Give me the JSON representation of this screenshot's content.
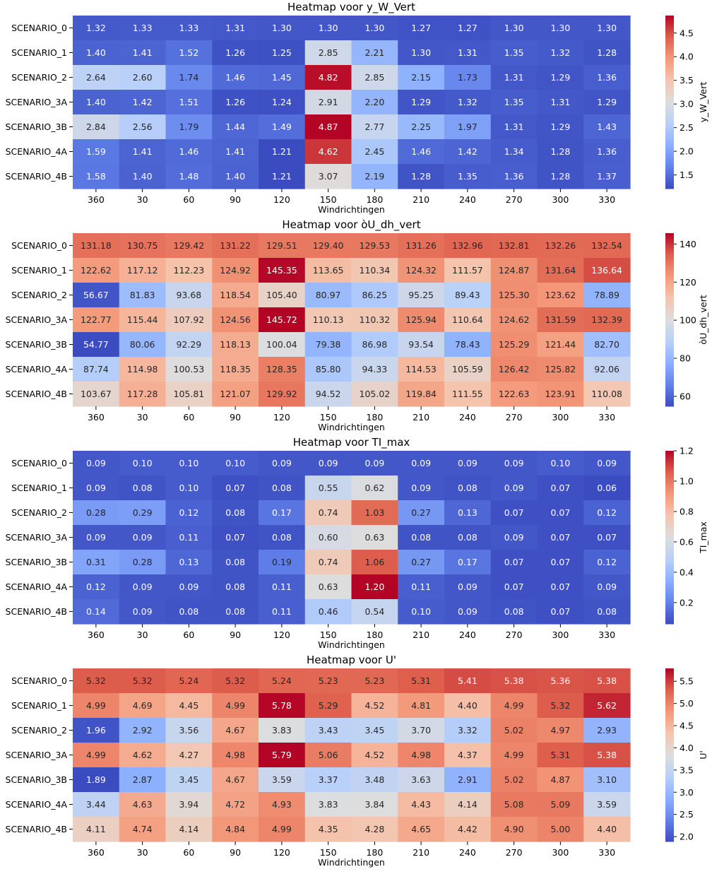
{
  "chart_data": [
    {
      "type": "heatmap",
      "title": "Heatmap voor y_W_Vert",
      "xlabel": "Windrichtingen",
      "ylabel": "",
      "colorbar_label": "y_W_Vert",
      "colormap": "coolwarm",
      "categories_x": [
        "360",
        "30",
        "60",
        "90",
        "120",
        "150",
        "180",
        "210",
        "240",
        "270",
        "300",
        "330"
      ],
      "categories_y": [
        "SCENARIO_0",
        "SCENARIO_1",
        "SCENARIO_2",
        "SCENARIO_3A",
        "SCENARIO_3B",
        "SCENARIO_4A",
        "SCENARIO_4B"
      ],
      "values": [
        [
          1.32,
          1.33,
          1.33,
          1.31,
          1.3,
          1.3,
          1.3,
          1.27,
          1.27,
          1.3,
          1.3,
          1.3
        ],
        [
          1.4,
          1.41,
          1.52,
          1.26,
          1.25,
          2.85,
          2.21,
          1.3,
          1.31,
          1.35,
          1.32,
          1.28
        ],
        [
          2.64,
          2.6,
          1.74,
          1.46,
          1.45,
          4.82,
          2.85,
          2.15,
          1.73,
          1.31,
          1.29,
          1.36
        ],
        [
          1.4,
          1.42,
          1.51,
          1.26,
          1.24,
          2.91,
          2.2,
          1.29,
          1.32,
          1.35,
          1.31,
          1.29
        ],
        [
          2.84,
          2.56,
          1.79,
          1.44,
          1.49,
          4.87,
          2.77,
          2.25,
          1.97,
          1.31,
          1.29,
          1.43
        ],
        [
          1.59,
          1.41,
          1.46,
          1.41,
          1.21,
          4.62,
          2.45,
          1.46,
          1.42,
          1.34,
          1.28,
          1.36
        ],
        [
          1.58,
          1.4,
          1.48,
          1.4,
          1.21,
          3.07,
          2.19,
          1.28,
          1.35,
          1.36,
          1.28,
          1.37
        ]
      ],
      "vmin": 1.21,
      "vmax": 4.87,
      "colorbar_ticks": [
        1.5,
        2.0,
        2.5,
        3.0,
        3.5,
        4.0,
        4.5
      ],
      "colorbar_tick_labels": [
        "1.5",
        "2.0",
        "2.5",
        "3.0",
        "3.5",
        "4.0",
        "4.5"
      ],
      "decimals": 2
    },
    {
      "type": "heatmap",
      "title": "Heatmap voor òU_dh_vert",
      "xlabel": "Windrichtingen",
      "ylabel": "",
      "colorbar_label": "òU_dh_vert",
      "colormap": "coolwarm",
      "categories_x": [
        "360",
        "30",
        "60",
        "90",
        "120",
        "150",
        "180",
        "210",
        "240",
        "270",
        "300",
        "330"
      ],
      "categories_y": [
        "SCENARIO_0",
        "SCENARIO_1",
        "SCENARIO_2",
        "SCENARIO_3A",
        "SCENARIO_3B",
        "SCENARIO_4A",
        "SCENARIO_4B"
      ],
      "values": [
        [
          131.18,
          130.75,
          129.42,
          131.22,
          129.51,
          129.4,
          129.53,
          131.26,
          132.96,
          132.81,
          132.26,
          132.54
        ],
        [
          122.62,
          117.12,
          112.23,
          124.92,
          145.35,
          113.65,
          110.34,
          124.32,
          111.57,
          124.87,
          131.64,
          136.64
        ],
        [
          56.67,
          81.83,
          93.68,
          118.54,
          105.4,
          80.97,
          86.25,
          95.25,
          89.43,
          125.3,
          123.62,
          78.89
        ],
        [
          122.77,
          115.44,
          107.92,
          124.56,
          145.72,
          110.13,
          110.32,
          125.94,
          110.64,
          124.62,
          131.59,
          132.39
        ],
        [
          54.77,
          80.06,
          92.29,
          118.13,
          100.04,
          79.38,
          86.98,
          93.54,
          78.43,
          125.29,
          121.44,
          82.7
        ],
        [
          87.74,
          114.98,
          100.53,
          118.35,
          128.35,
          85.8,
          94.33,
          114.53,
          105.59,
          126.42,
          125.82,
          92.06
        ],
        [
          103.67,
          117.28,
          105.81,
          121.07,
          129.92,
          94.52,
          105.02,
          119.84,
          111.55,
          122.63,
          123.91,
          110.08
        ]
      ],
      "vmin": 54.77,
      "vmax": 145.72,
      "colorbar_ticks": [
        60,
        80,
        100,
        120,
        140
      ],
      "colorbar_tick_labels": [
        "60",
        "80",
        "100",
        "120",
        "140"
      ],
      "decimals": 2
    },
    {
      "type": "heatmap",
      "title": "Heatmap voor TI_max",
      "xlabel": "Windrichtingen",
      "ylabel": "",
      "colorbar_label": "TI_max",
      "colormap": "coolwarm",
      "categories_x": [
        "360",
        "30",
        "60",
        "90",
        "120",
        "150",
        "180",
        "210",
        "240",
        "270",
        "300",
        "330"
      ],
      "categories_y": [
        "SCENARIO_0",
        "SCENARIO_1",
        "SCENARIO_2",
        "SCENARIO_3A",
        "SCENARIO_3B",
        "SCENARIO_4A",
        "SCENARIO_4B"
      ],
      "values": [
        [
          0.09,
          0.1,
          0.1,
          0.1,
          0.09,
          0.09,
          0.09,
          0.09,
          0.09,
          0.09,
          0.1,
          0.09
        ],
        [
          0.09,
          0.08,
          0.1,
          0.07,
          0.08,
          0.55,
          0.62,
          0.09,
          0.08,
          0.09,
          0.07,
          0.06
        ],
        [
          0.28,
          0.29,
          0.12,
          0.08,
          0.17,
          0.74,
          1.03,
          0.27,
          0.13,
          0.07,
          0.07,
          0.12
        ],
        [
          0.09,
          0.09,
          0.11,
          0.07,
          0.08,
          0.6,
          0.63,
          0.08,
          0.08,
          0.09,
          0.07,
          0.07
        ],
        [
          0.31,
          0.28,
          0.13,
          0.08,
          0.19,
          0.74,
          1.06,
          0.27,
          0.17,
          0.07,
          0.07,
          0.12
        ],
        [
          0.12,
          0.09,
          0.09,
          0.08,
          0.11,
          0.63,
          1.2,
          0.11,
          0.09,
          0.07,
          0.07,
          0.09
        ],
        [
          0.14,
          0.09,
          0.08,
          0.08,
          0.11,
          0.46,
          0.54,
          0.1,
          0.09,
          0.08,
          0.07,
          0.08
        ]
      ],
      "vmin": 0.06,
      "vmax": 1.2,
      "colorbar_ticks": [
        0.2,
        0.4,
        0.6,
        0.8,
        1.0,
        1.2
      ],
      "colorbar_tick_labels": [
        "0.2",
        "0.4",
        "0.6",
        "0.8",
        "1.0",
        "1.2"
      ],
      "decimals": 2
    },
    {
      "type": "heatmap",
      "title": "Heatmap voor U'",
      "xlabel": "Windrichtingen",
      "ylabel": "",
      "colorbar_label": "U'",
      "colormap": "coolwarm",
      "categories_x": [
        "360",
        "30",
        "60",
        "90",
        "120",
        "150",
        "180",
        "210",
        "240",
        "270",
        "300",
        "330"
      ],
      "categories_y": [
        "SCENARIO_0",
        "SCENARIO_1",
        "SCENARIO_2",
        "SCENARIO_3A",
        "SCENARIO_3B",
        "SCENARIO_4A",
        "SCENARIO_4B"
      ],
      "values": [
        [
          5.32,
          5.32,
          5.24,
          5.32,
          5.24,
          5.23,
          5.23,
          5.31,
          5.41,
          5.38,
          5.36,
          5.38
        ],
        [
          4.99,
          4.69,
          4.45,
          4.99,
          5.78,
          5.29,
          4.52,
          4.81,
          4.4,
          4.99,
          5.32,
          5.62
        ],
        [
          1.96,
          2.92,
          3.56,
          4.67,
          3.83,
          3.43,
          3.45,
          3.7,
          3.32,
          5.02,
          4.97,
          2.93
        ],
        [
          4.99,
          4.62,
          4.27,
          4.98,
          5.79,
          5.06,
          4.52,
          4.98,
          4.37,
          4.99,
          5.31,
          5.38
        ],
        [
          1.89,
          2.87,
          3.45,
          4.67,
          3.59,
          3.37,
          3.48,
          3.63,
          2.91,
          5.02,
          4.87,
          3.1
        ],
        [
          3.44,
          4.63,
          3.94,
          4.72,
          4.93,
          3.83,
          3.84,
          4.43,
          4.14,
          5.08,
          5.09,
          3.59
        ],
        [
          4.11,
          4.74,
          4.14,
          4.84,
          4.99,
          4.35,
          4.28,
          4.65,
          4.42,
          4.9,
          5.0,
          4.4
        ]
      ],
      "vmin": 1.89,
      "vmax": 5.79,
      "colorbar_ticks": [
        2.0,
        2.5,
        3.0,
        3.5,
        4.0,
        4.5,
        5.0,
        5.5
      ],
      "colorbar_tick_labels": [
        "2.0",
        "2.5",
        "3.0",
        "3.5",
        "4.0",
        "4.5",
        "5.0",
        "5.5"
      ],
      "decimals": 2
    }
  ]
}
